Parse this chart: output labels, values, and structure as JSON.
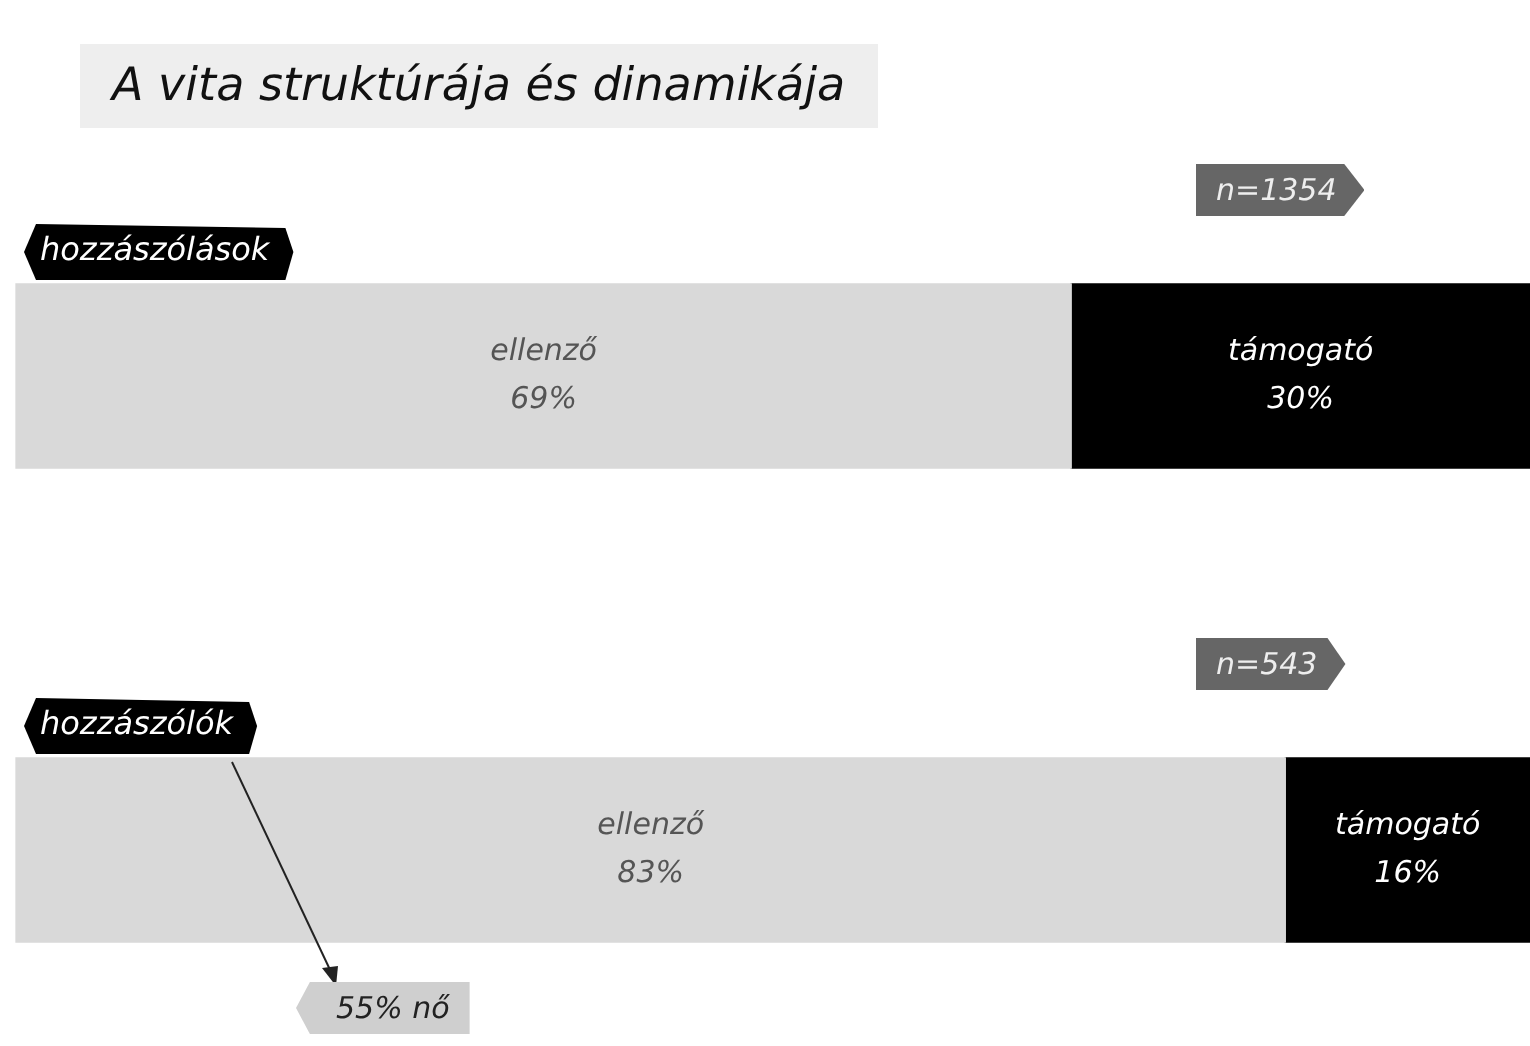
{
  "chart_data": {
    "type": "bar",
    "orientation": "horizontal",
    "stacked": true,
    "title": "A vita struktúrája és dinamikája",
    "categories": [
      "hozzászólások",
      "hozzászólók"
    ],
    "series": [
      {
        "name": "ellenző",
        "color": "#d9d9d9",
        "values": [
          69,
          83
        ],
        "value_labels": [
          "69%",
          "83%"
        ]
      },
      {
        "name": "támogató",
        "color": "#000000",
        "values": [
          30,
          16
        ],
        "value_labels": [
          "30%",
          "16%"
        ]
      }
    ],
    "annotations": [
      "n=1354",
      "n=543",
      "55% nő"
    ],
    "legend": false
  }
}
